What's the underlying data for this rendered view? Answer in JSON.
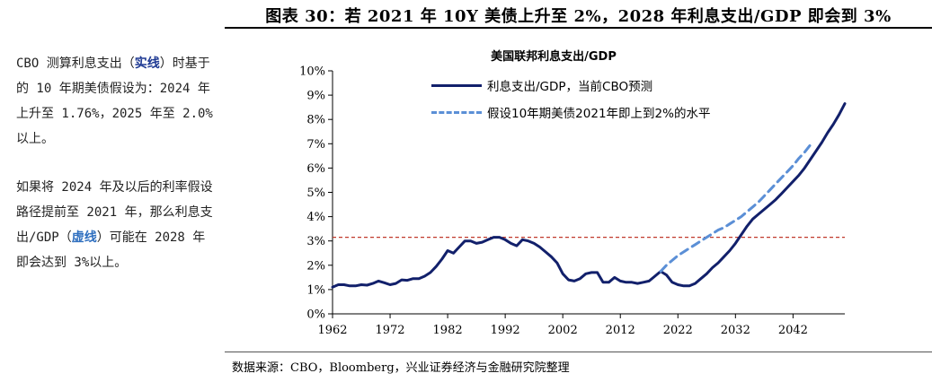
{
  "figure_title": "图表 30：若 2021 年 10Y 美债上升至 2%，2028 年利息支出/GDP 即会到 3%",
  "side_text": {
    "p1_a": "CBO 测算利息支出（",
    "p1_hl": "实线",
    "p1_b": "）时基于的 10 年期美债假设为：2024 年上升至 1.76%，2025 年至 2.0%以上。",
    "p2_a": "如果将 2024 年及以后的利率假设路径提前至 2021 年，那么利息支出/GDP（",
    "p2_hl": "虚线",
    "p2_b": "）可能在 2028 年即会达到 3%以上。"
  },
  "source": "数据来源：CBO，Bloomberg，兴业证券经济与金融研究院整理",
  "chart_data": {
    "type": "line",
    "title": "美国联邦利息支出/GDP",
    "xlabel": "",
    "ylabel": "",
    "xlim": [
      1962,
      2051
    ],
    "ylim": [
      0,
      10
    ],
    "x_ticks": [
      1962,
      1972,
      1982,
      1992,
      2002,
      2012,
      2022,
      2032,
      2042
    ],
    "y_ticks": [
      "0%",
      "1%",
      "2%",
      "3%",
      "4%",
      "5%",
      "6%",
      "7%",
      "8%",
      "9%",
      "10%"
    ],
    "grid": false,
    "legend_position": "top-center",
    "reference_line": {
      "y": 3.15,
      "color": "#c0392b",
      "style": "dashed"
    },
    "series": [
      {
        "name": "利息支出/GDP，当前CBO预测",
        "style": "solid",
        "color": "#12206b",
        "x": [
          1962,
          1963,
          1964,
          1965,
          1966,
          1967,
          1968,
          1969,
          1970,
          1971,
          1972,
          1973,
          1974,
          1975,
          1976,
          1977,
          1978,
          1979,
          1980,
          1981,
          1982,
          1983,
          1984,
          1985,
          1986,
          1987,
          1988,
          1989,
          1990,
          1991,
          1992,
          1993,
          1994,
          1995,
          1996,
          1997,
          1998,
          1999,
          2000,
          2001,
          2002,
          2003,
          2004,
          2005,
          2006,
          2007,
          2008,
          2009,
          2010,
          2011,
          2012,
          2013,
          2014,
          2015,
          2016,
          2017,
          2018,
          2019,
          2020,
          2021,
          2022,
          2023,
          2024,
          2025,
          2026,
          2027,
          2028,
          2029,
          2030,
          2031,
          2032,
          2033,
          2034,
          2035,
          2036,
          2037,
          2038,
          2039,
          2040,
          2041,
          2042,
          2043,
          2044,
          2045,
          2046,
          2047,
          2048,
          2049,
          2050,
          2051
        ],
        "values": [
          1.1,
          1.2,
          1.2,
          1.15,
          1.15,
          1.2,
          1.18,
          1.25,
          1.35,
          1.28,
          1.2,
          1.25,
          1.4,
          1.38,
          1.45,
          1.45,
          1.55,
          1.7,
          1.95,
          2.25,
          2.6,
          2.5,
          2.75,
          3.0,
          3.0,
          2.9,
          2.95,
          3.05,
          3.15,
          3.15,
          3.05,
          2.9,
          2.8,
          3.05,
          3.0,
          2.9,
          2.75,
          2.55,
          2.35,
          2.1,
          1.65,
          1.4,
          1.35,
          1.45,
          1.65,
          1.7,
          1.7,
          1.3,
          1.3,
          1.5,
          1.35,
          1.3,
          1.3,
          1.25,
          1.3,
          1.35,
          1.55,
          1.75,
          1.6,
          1.3,
          1.2,
          1.15,
          1.15,
          1.25,
          1.45,
          1.65,
          1.9,
          2.1,
          2.35,
          2.6,
          2.9,
          3.25,
          3.6,
          3.9,
          4.1,
          4.3,
          4.5,
          4.7,
          4.95,
          5.2,
          5.45,
          5.7,
          6.0,
          6.35,
          6.7,
          7.05,
          7.45,
          7.8,
          8.2,
          8.65
        ]
      },
      {
        "name": "假设10年期美债2021年即上到2%的水平",
        "style": "dashed",
        "color": "#5b8fd6",
        "x": [
          2019,
          2020,
          2021,
          2022,
          2023,
          2024,
          2025,
          2026,
          2027,
          2028,
          2029,
          2030,
          2031,
          2032,
          2033,
          2034,
          2035,
          2036,
          2037,
          2038,
          2039,
          2040,
          2041,
          2042,
          2043,
          2044,
          2045
        ],
        "values": [
          1.75,
          2.0,
          2.2,
          2.4,
          2.55,
          2.7,
          2.85,
          3.0,
          3.15,
          3.3,
          3.45,
          3.55,
          3.7,
          3.85,
          4.0,
          4.2,
          4.4,
          4.6,
          4.85,
          5.1,
          5.35,
          5.6,
          5.85,
          6.1,
          6.4,
          6.65,
          6.95
        ]
      }
    ]
  }
}
